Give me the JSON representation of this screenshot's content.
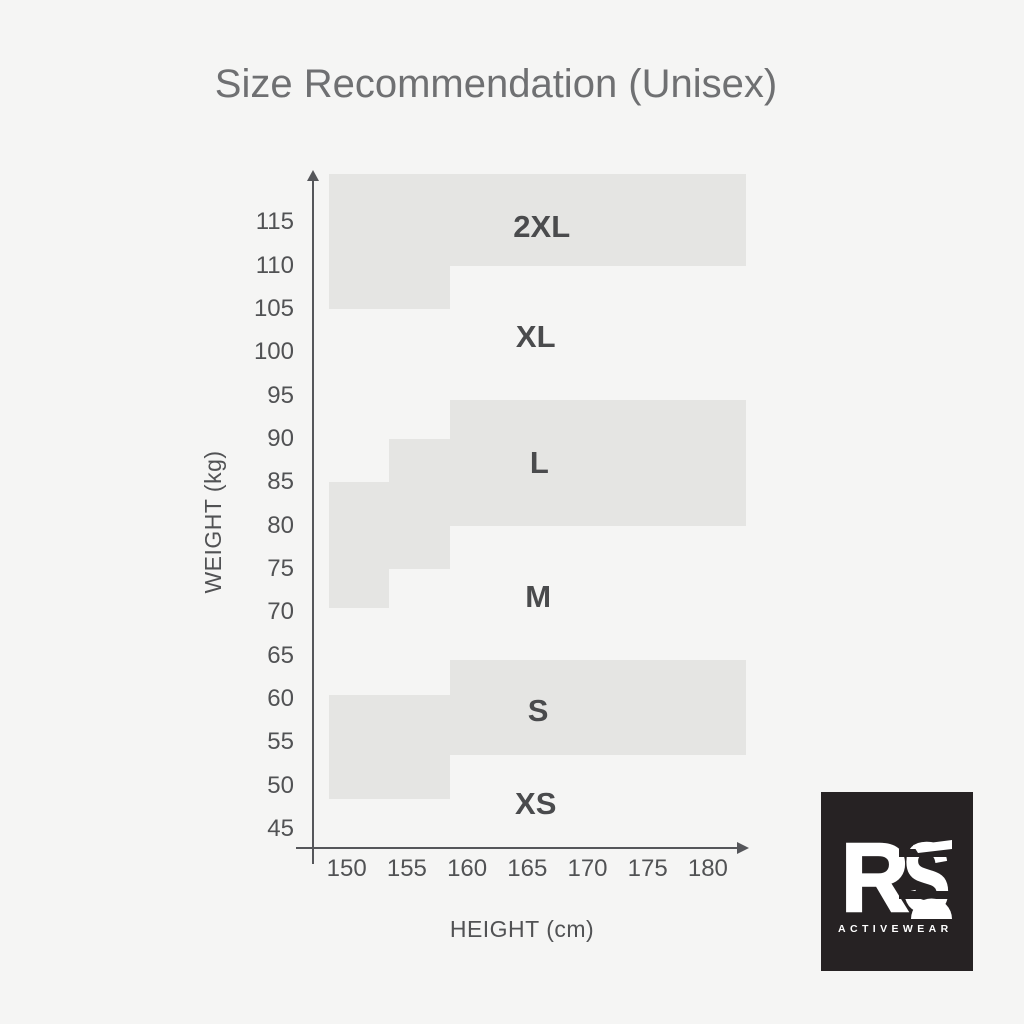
{
  "chart_data": {
    "type": "area",
    "subtype": "stepped-size-region-map",
    "title": "Size Recommendation (Unisex)",
    "xlabel": "HEIGHT (cm)",
    "ylabel": "WEIGHT (kg)",
    "x_ticks": [
      150,
      155,
      160,
      165,
      170,
      175,
      180
    ],
    "y_ticks": [
      45,
      50,
      55,
      60,
      65,
      70,
      75,
      80,
      85,
      90,
      95,
      100,
      105,
      110,
      115
    ],
    "xlim": [
      147,
      184
    ],
    "ylim": [
      44,
      121
    ],
    "grid": false,
    "legend": "none",
    "regions": [
      {
        "size": "2XL",
        "filled": true,
        "label_at": {
          "height_cm": 166.2,
          "weight_kg": 114.5
        },
        "segments": [
          {
            "height_cm": [
              148.5,
              158.6
            ],
            "weight_kg": [
              105,
              120.6
            ]
          },
          {
            "height_cm": [
              158.6,
              183.2
            ],
            "weight_kg": [
              110,
              120.6
            ]
          }
        ]
      },
      {
        "size": "XL",
        "filled": false,
        "label_at": {
          "height_cm": 165.7,
          "weight_kg": 101.8
        },
        "segments": []
      },
      {
        "size": "L",
        "filled": true,
        "label_at": {
          "height_cm": 166.0,
          "weight_kg": 87.2
        },
        "segments": [
          {
            "height_cm": [
              148.5,
              153.5
            ],
            "weight_kg": [
              70.5,
              85
            ]
          },
          {
            "height_cm": [
              153.5,
              158.6
            ],
            "weight_kg": [
              75,
              90
            ]
          },
          {
            "height_cm": [
              158.6,
              183.2
            ],
            "weight_kg": [
              80,
              94.5
            ]
          }
        ]
      },
      {
        "size": "M",
        "filled": false,
        "label_at": {
          "height_cm": 165.9,
          "weight_kg": 71.8
        },
        "segments": []
      },
      {
        "size": "S",
        "filled": true,
        "label_at": {
          "height_cm": 165.9,
          "weight_kg": 58.6
        },
        "segments": [
          {
            "height_cm": [
              148.5,
              158.6
            ],
            "weight_kg": [
              48.5,
              60.5
            ]
          },
          {
            "height_cm": [
              158.6,
              183.2
            ],
            "weight_kg": [
              53.5,
              64.5
            ]
          }
        ]
      },
      {
        "size": "XS",
        "filled": false,
        "label_at": {
          "height_cm": 165.7,
          "weight_kg": 47.9
        },
        "segments": []
      }
    ],
    "colors": {
      "background": "#f5f5f4",
      "region_fill": "#e5e5e3",
      "size_label_text": "#4a4b4d",
      "tick_text": "#515254",
      "axis": "#55565a",
      "title_text": "#6f7072"
    }
  },
  "logo": {
    "letter_1": "R",
    "letter_2": "S",
    "tagline": "ACTIVEWEAR",
    "background": "#262223",
    "foreground": "#ffffff"
  }
}
